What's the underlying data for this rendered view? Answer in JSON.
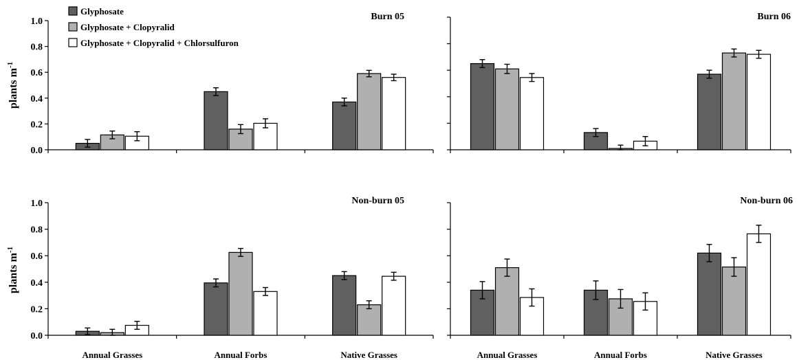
{
  "chart_data": {
    "type": "bar",
    "categories": [
      "Annual Grasses",
      "Annual Forbs",
      "Native Grasses"
    ],
    "ylabel": "plants",
    "ylabel_unit": "m",
    "ylabel_exp": "-1",
    "ylim": [
      0,
      1.0
    ],
    "yticks": [
      "0.0",
      "0.2",
      "0.4",
      "0.6",
      "0.8",
      "1.0"
    ],
    "legend": {
      "placement": "top-left of first panel",
      "entries": [
        {
          "name": "Glyphosate",
          "color": "#606060"
        },
        {
          "name": "Glyphosate + Clopyralid",
          "color": "#b0b0b0"
        },
        {
          "name": "Glyphosate + Clopyralid + Chlorsulfuron",
          "color": "#ffffff"
        }
      ]
    },
    "panels": [
      {
        "title": "Burn 05",
        "show_y_tick_labels": true,
        "series": [
          {
            "name": "Glyphosate",
            "values": [
              0.05,
              0.45,
              0.37
            ],
            "errors": [
              0.03,
              0.03,
              0.03
            ]
          },
          {
            "name": "Glyphosate + Clopyralid",
            "values": [
              0.115,
              0.16,
              0.59
            ],
            "errors": [
              0.03,
              0.035,
              0.025
            ]
          },
          {
            "name": "Glyphosate + Clopyralid + Chlorsulfuron",
            "values": [
              0.105,
              0.205,
              0.56
            ],
            "errors": [
              0.035,
              0.035,
              0.025
            ]
          }
        ]
      },
      {
        "title": "Burn 06",
        "show_y_tick_labels": false,
        "series": [
          {
            "name": "Glyphosate",
            "values": [
              0.65,
              0.13,
              0.57
            ],
            "errors": [
              0.03,
              0.03,
              0.03
            ]
          },
          {
            "name": "Glyphosate + Clopyralid",
            "values": [
              0.61,
              0.01,
              0.73
            ],
            "errors": [
              0.035,
              0.025,
              0.03
            ]
          },
          {
            "name": "Glyphosate + Clopyralid + Chlorsulfuron",
            "values": [
              0.545,
              0.065,
              0.72
            ],
            "errors": [
              0.03,
              0.035,
              0.03
            ]
          }
        ]
      },
      {
        "title": "Non-burn 05",
        "show_y_tick_labels": true,
        "series": [
          {
            "name": "Glyphosate",
            "values": [
              0.03,
              0.395,
              0.45
            ],
            "errors": [
              0.025,
              0.03,
              0.03
            ]
          },
          {
            "name": "Glyphosate + Clopyralid",
            "values": [
              0.02,
              0.625,
              0.23
            ],
            "errors": [
              0.025,
              0.03,
              0.03
            ]
          },
          {
            "name": "Glyphosate + Clopyralid + Chlorsulfuron",
            "values": [
              0.075,
              0.33,
              0.445
            ],
            "errors": [
              0.03,
              0.03,
              0.03
            ]
          }
        ]
      },
      {
        "title": "Non-burn 06",
        "show_y_tick_labels": false,
        "series": [
          {
            "name": "Glyphosate",
            "values": [
              0.34,
              0.34,
              0.62
            ],
            "errors": [
              0.065,
              0.07,
              0.065
            ]
          },
          {
            "name": "Glyphosate + Clopyralid",
            "values": [
              0.51,
              0.275,
              0.515
            ],
            "errors": [
              0.065,
              0.07,
              0.07
            ]
          },
          {
            "name": "Glyphosate + Clopyralid + Chlorsulfuron",
            "values": [
              0.285,
              0.255,
              0.765
            ],
            "errors": [
              0.065,
              0.065,
              0.065
            ]
          }
        ]
      }
    ]
  }
}
